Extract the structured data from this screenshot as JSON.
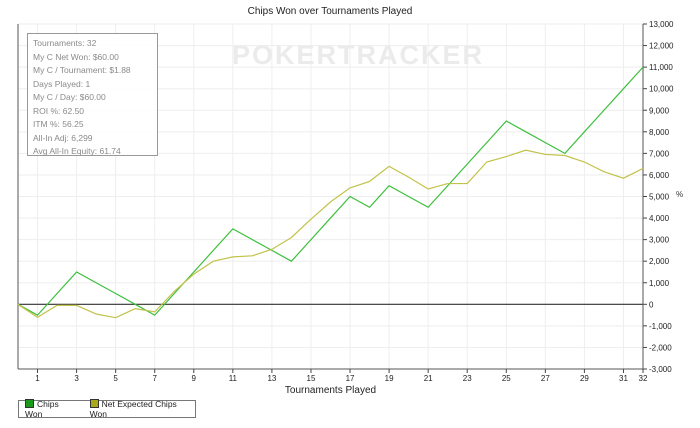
{
  "chart_data": {
    "type": "line",
    "title": "Chips Won over Tournaments Played",
    "xlabel": "Tournaments Played",
    "ylabel": "%",
    "xlim": [
      0,
      32
    ],
    "ylim": [
      -3000,
      13000
    ],
    "x_ticks": [
      1,
      3,
      5,
      7,
      9,
      11,
      13,
      15,
      17,
      19,
      21,
      23,
      25,
      27,
      29,
      31,
      32
    ],
    "y_ticks": [
      "-3,000",
      "-2,000",
      "-1,000",
      "0",
      "1,000",
      "2,000",
      "3,000",
      "4,000",
      "5,000",
      "6,000",
      "7,000",
      "8,000",
      "9,000",
      "10,000",
      "11,000",
      "12,000",
      "13,000"
    ],
    "grid": true,
    "legend_placement": "bottom-left",
    "x": [
      0,
      1,
      2,
      3,
      4,
      5,
      6,
      7,
      8,
      9,
      10,
      11,
      12,
      13,
      14,
      15,
      16,
      17,
      18,
      19,
      20,
      21,
      22,
      23,
      24,
      25,
      26,
      27,
      28,
      29,
      30,
      31,
      32
    ],
    "series": [
      {
        "name": "Chips Won",
        "color": "#3cbf3c",
        "values": [
          0,
          -500,
          500,
          1500,
          1000,
          500,
          0,
          -500,
          500,
          1500,
          2500,
          3500,
          3000,
          2500,
          2000,
          3000,
          4000,
          5000,
          4500,
          5500,
          5000,
          4500,
          5500,
          6500,
          7500,
          8500,
          8000,
          7500,
          7000,
          8000,
          9000,
          10000,
          11000
        ]
      },
      {
        "name": "Net Expected Chips Won",
        "color": "#c2c24a",
        "values": [
          0,
          -600,
          -50,
          -50,
          -450,
          -620,
          -200,
          -350,
          600,
          1400,
          2000,
          2200,
          2250,
          2550,
          3100,
          3950,
          4750,
          5400,
          5700,
          6400,
          5900,
          5350,
          5600,
          5600,
          6600,
          6850,
          7150,
          6950,
          6900,
          6600,
          6150,
          5850,
          6300
        ]
      }
    ]
  },
  "stats": [
    "Tournaments: 32",
    "My C Net Won: $60.00",
    "My C / Tournament: $1.88",
    "Days Played: 1",
    "My C / Day: $60.00",
    "ROI %: 62.50",
    "ITM %: 56.25",
    "All-In Adj: 6,299",
    "Avg All-In Equity: 61.74"
  ],
  "logo": "POKERTRACKER",
  "legend_swatch_colors": [
    "#1a9a1a",
    "#a8a81a"
  ]
}
